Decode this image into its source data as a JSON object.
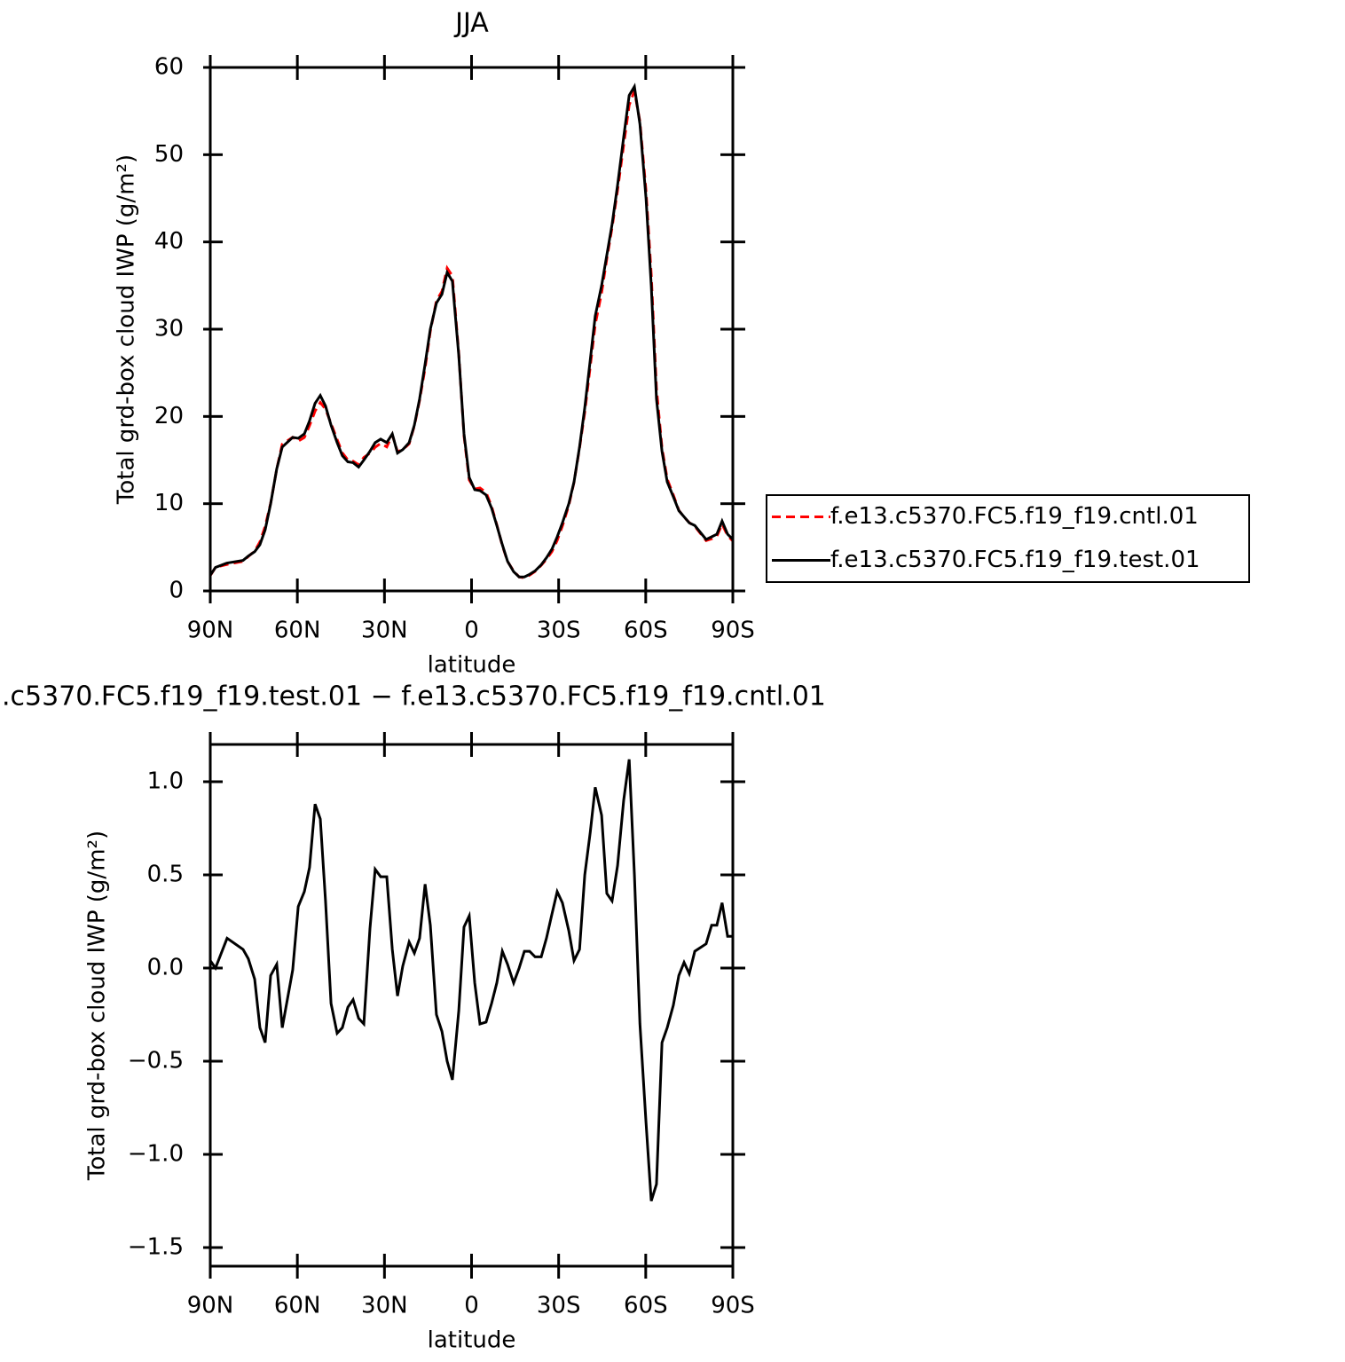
{
  "chart_data": [
    {
      "type": "line",
      "title": "JJA",
      "xlabel": "latitude",
      "ylabel": "Total grd-box cloud IWP (g/m²)",
      "x": [
        90,
        88.2,
        84.2,
        78.7,
        76.9,
        74.7,
        72.9,
        71.1,
        69.2,
        67.1,
        65.2,
        61.6,
        59.7,
        57.6,
        55.8,
        53.9,
        52.1,
        50.3,
        48.4,
        46.3,
        44.5,
        42.6,
        40.8,
        38.9,
        37.1,
        35.0,
        33.2,
        31.3,
        29.2,
        27.3,
        25.5,
        23.7,
        21.5,
        19.7,
        17.9,
        16.0,
        14.2,
        12.1,
        10.2,
        8.4,
        6.6,
        4.4,
        2.6,
        0.8,
        -1.1,
        -2.9,
        -5.0,
        -6.9,
        -8.7,
        -10.6,
        -12.4,
        -14.5,
        -16.4,
        -18.2,
        -20.0,
        -21.9,
        -24.0,
        -25.8,
        -27.7,
        -29.5,
        -31.3,
        -33.5,
        -35.3,
        -37.2,
        -39.0,
        -40.9,
        -42.6,
        -44.8,
        -46.6,
        -48.4,
        -50.3,
        -52.4,
        -54.3,
        -56.1,
        -58.0,
        -60.1,
        -61.9,
        -63.7,
        -65.6,
        -67.4,
        -69.5,
        -71.4,
        -73.2,
        -75.0,
        -76.9,
        -80.8,
        -82.7,
        -84.5,
        -86.3,
        -88.2,
        -90
      ],
      "series": [
        {
          "name": "f.e13.c5370.FC5.f19_f19.cntl.01",
          "color": "#ff0000",
          "linestyle": "dashed",
          "values": [
            1.76,
            2.7,
            3.04,
            3.4,
            3.95,
            4.56,
            5.62,
            7.4,
            10.04,
            13.98,
            16.82,
            17.61,
            17.17,
            17.59,
            18.96,
            20.62,
            21.6,
            20.84,
            19.19,
            17.35,
            15.82,
            15.01,
            14.87,
            14.47,
            15.3,
            15.79,
            16.47,
            16.91,
            16.51,
            17.9,
            15.95,
            16.19,
            16.86,
            18.92,
            21.84,
            25.55,
            29.77,
            33.25,
            34.34,
            37.0,
            36.1,
            27.23,
            17.78,
            12.72,
            11.68,
            11.8,
            11.29,
            9.69,
            7.58,
            5.21,
            3.38,
            2.28,
            1.6,
            1.51,
            1.81,
            2.24,
            2.94,
            3.64,
            4.51,
            5.79,
            7.45,
            9.8,
            12.46,
            16.4,
            20.5,
            25.77,
            30.53,
            34.18,
            38.1,
            41.64,
            45.95,
            51.1,
            55.68,
            57.3,
            53.8,
            45.83,
            36.25,
            23.16,
            16.4,
            12.82,
            11.0,
            9.24,
            8.47,
            7.83,
            7.41,
            5.77,
            5.97,
            6.27,
            7.65,
            6.33,
            5.73
          ]
        },
        {
          "name": "f.e13.c5370.FC5.f19_f19.test.01",
          "color": "#000000",
          "linestyle": "solid",
          "values": [
            1.8,
            2.7,
            3.2,
            3.5,
            4.0,
            4.5,
            5.3,
            7.0,
            10,
            14,
            16.5,
            17.6,
            17.5,
            18,
            19.5,
            21.5,
            22.4,
            21.2,
            19,
            17,
            15.5,
            14.8,
            14.7,
            14.2,
            15,
            16,
            17,
            17.4,
            17.0,
            18,
            15.8,
            16.2,
            17,
            19,
            22,
            26,
            30,
            33,
            34,
            36.5,
            35.5,
            27,
            18,
            13,
            11.6,
            11.5,
            11,
            9.5,
            7.5,
            5.3,
            3.4,
            2.2,
            1.6,
            1.6,
            1.9,
            2.3,
            3.0,
            3.8,
            4.8,
            6.2,
            7.8,
            10,
            12.5,
            16.5,
            21,
            26.5,
            31.5,
            35,
            38.5,
            42,
            46.5,
            52,
            56.8,
            57.8,
            53.5,
            45,
            35,
            22,
            16,
            12.5,
            10.8,
            9.2,
            8.5,
            7.8,
            7.5,
            5.9,
            6.2,
            6.5,
            8.0,
            6.5,
            5.9
          ]
        }
      ],
      "xlim": [
        90,
        -90
      ],
      "xticks": [
        {
          "value": 90,
          "label": "90N"
        },
        {
          "value": 60,
          "label": "60N"
        },
        {
          "value": 30,
          "label": "30N"
        },
        0,
        {
          "value": -30,
          "label": "30S"
        },
        {
          "value": -60,
          "label": "60S"
        },
        {
          "value": -90,
          "label": "90S"
        }
      ],
      "ylim": [
        0,
        60
      ],
      "yticks": [
        0,
        10,
        20,
        30,
        40,
        50,
        60
      ],
      "legend": "right"
    },
    {
      "type": "line",
      "title": ".c5370.FC5.f19_f19.test.01 − f.e13.c5370.FC5.f19_f19.cntl.01",
      "xlabel": "latitude",
      "ylabel": "Total grd-box cloud IWP (g/m²)",
      "x": [
        90,
        88.2,
        84.2,
        78.7,
        76.9,
        74.7,
        72.9,
        71.1,
        69.2,
        67.1,
        65.2,
        61.6,
        59.7,
        57.6,
        55.8,
        53.9,
        52.1,
        50.3,
        48.4,
        46.3,
        44.5,
        42.6,
        40.8,
        38.9,
        37.1,
        35.0,
        33.2,
        31.3,
        29.2,
        27.3,
        25.5,
        23.7,
        21.5,
        19.7,
        17.9,
        16.0,
        14.2,
        12.1,
        10.2,
        8.4,
        6.6,
        4.4,
        2.6,
        0.8,
        -1.1,
        -2.9,
        -5.0,
        -6.9,
        -8.7,
        -10.6,
        -12.4,
        -14.5,
        -16.4,
        -18.2,
        -20.0,
        -21.9,
        -24.0,
        -25.8,
        -27.7,
        -29.5,
        -31.3,
        -33.5,
        -35.3,
        -37.2,
        -39.0,
        -40.9,
        -42.6,
        -44.8,
        -46.6,
        -48.4,
        -50.3,
        -52.4,
        -54.3,
        -56.1,
        -58.0,
        -60.1,
        -61.9,
        -63.7,
        -65.6,
        -67.4,
        -69.5,
        -71.4,
        -73.2,
        -75.0,
        -76.9,
        -80.8,
        -82.7,
        -84.5,
        -86.3,
        -88.2,
        -90
      ],
      "color": "#000000",
      "values": [
        0.04,
        0.0,
        0.16,
        0.1,
        0.05,
        -0.06,
        -0.32,
        -0.4,
        -0.04,
        0.02,
        -0.32,
        -0.01,
        0.33,
        0.41,
        0.54,
        0.88,
        0.8,
        0.36,
        -0.19,
        -0.35,
        -0.32,
        -0.21,
        -0.17,
        -0.27,
        -0.3,
        0.21,
        0.53,
        0.49,
        0.49,
        0.1,
        -0.15,
        0.01,
        0.14,
        0.08,
        0.16,
        0.45,
        0.23,
        -0.25,
        -0.34,
        -0.5,
        -0.6,
        -0.23,
        0.22,
        0.28,
        -0.08,
        -0.3,
        -0.29,
        -0.19,
        -0.08,
        0.09,
        0.02,
        -0.08,
        0.0,
        0.09,
        0.09,
        0.06,
        0.06,
        0.16,
        0.29,
        0.41,
        0.35,
        0.2,
        0.04,
        0.1,
        0.5,
        0.73,
        0.97,
        0.82,
        0.4,
        0.36,
        0.55,
        0.9,
        1.12,
        0.5,
        -0.3,
        -0.83,
        -1.25,
        -1.16,
        -0.4,
        -0.32,
        -0.2,
        -0.04,
        0.03,
        -0.03,
        0.09,
        0.13,
        0.23,
        0.23,
        0.35,
        0.17,
        0.17
      ],
      "xlim": [
        90,
        -90
      ],
      "xticks": [
        {
          "value": 90,
          "label": "90N"
        },
        {
          "value": 60,
          "label": "60N"
        },
        {
          "value": 30,
          "label": "30N"
        },
        0,
        {
          "value": -30,
          "label": "30S"
        },
        {
          "value": -60,
          "label": "60S"
        },
        {
          "value": -90,
          "label": "90S"
        }
      ],
      "ylim": [
        -1.6,
        1.2
      ],
      "yticks": [
        {
          "value": -1.5,
          "label": "−1.5"
        },
        {
          "value": -1.0,
          "label": "−1.0"
        },
        {
          "value": -0.5,
          "label": "−0.5"
        },
        {
          "value": 0.0,
          "label": "0.0"
        },
        {
          "value": 0.5,
          "label": "0.5"
        },
        {
          "value": 1.0,
          "label": "1.0"
        }
      ]
    }
  ]
}
